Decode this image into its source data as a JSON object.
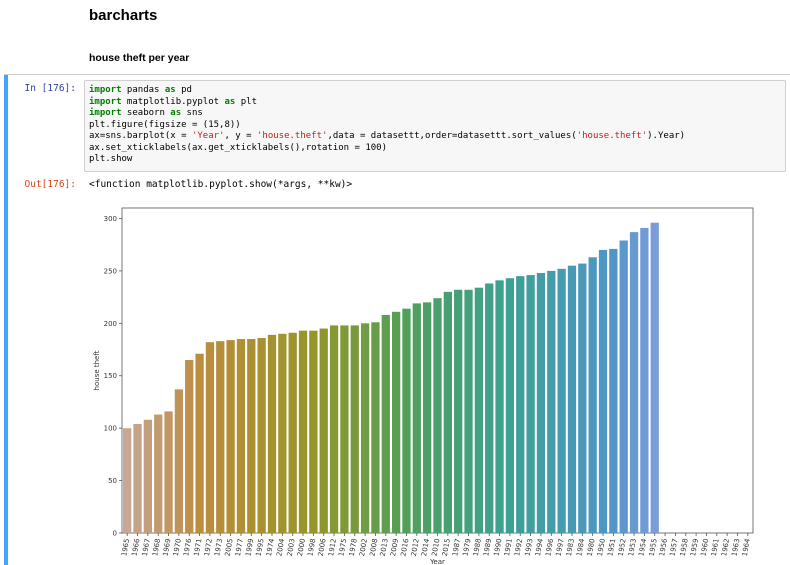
{
  "markdown": {
    "title": "barcharts",
    "subtitle": "house theft per year"
  },
  "input_cell": {
    "prompt": "In [176]:",
    "code_lines": [
      "import pandas as pd",
      "import matplotlib.pyplot as plt",
      "import seaborn as sns",
      "plt.figure(figsize = (15,8))",
      "ax=sns.barplot(x = 'Year', y = 'house.theft',data = datasettt,order=datasettt.sort_values('house.theft').Year)",
      "ax.set_xticklabels(ax.get_xticklabels(),rotation = 100)",
      "plt.show"
    ]
  },
  "output_cell": {
    "prompt": "Out[176]:",
    "text": "<function matplotlib.pyplot.show(*args, **kw)>"
  },
  "colors": {
    "cell_selected_bar": "#42a5f5",
    "prompt_in": "#303f9f",
    "prompt_out": "#d84315"
  },
  "chart_data": {
    "type": "bar",
    "ylabel": "house theft",
    "xlabel": "Year",
    "ylim": [
      0,
      310
    ],
    "yticks": [
      0,
      50,
      100,
      150,
      200,
      250,
      300
    ],
    "grid": false,
    "categories": [
      "1965",
      "1966",
      "1967",
      "1968",
      "1969",
      "1970",
      "1976",
      "1971",
      "1972",
      "1973",
      "2005",
      "1977",
      "1999",
      "1995",
      "1974",
      "2004",
      "2003",
      "2000",
      "1998",
      "2006",
      "1912",
      "1975",
      "1978",
      "2002",
      "2008",
      "2013",
      "2009",
      "2016",
      "2012",
      "2014",
      "2010",
      "2015",
      "1987",
      "1979",
      "1988",
      "1989",
      "1990",
      "1991",
      "1992",
      "1993",
      "1994",
      "1996",
      "1997",
      "1983",
      "1984",
      "1980",
      "1950",
      "1951",
      "1952",
      "1953",
      "1954",
      "1955",
      "1956",
      "1957",
      "1958",
      "1959",
      "1960",
      "1961",
      "1962",
      "1963",
      "1964"
    ],
    "values": [
      100,
      104,
      108,
      113,
      116,
      137,
      165,
      171,
      182,
      183,
      184,
      185,
      185,
      186,
      189,
      190,
      191,
      193,
      193,
      195,
      198,
      198,
      198,
      200,
      201,
      208,
      211,
      214,
      219,
      220,
      224,
      230,
      232,
      232,
      234,
      238,
      241,
      243,
      245,
      246,
      248,
      250,
      252,
      255,
      257,
      263,
      270,
      271,
      279,
      287,
      291,
      296,
      0,
      0,
      0,
      0,
      0,
      0,
      0,
      0,
      0
    ]
  }
}
